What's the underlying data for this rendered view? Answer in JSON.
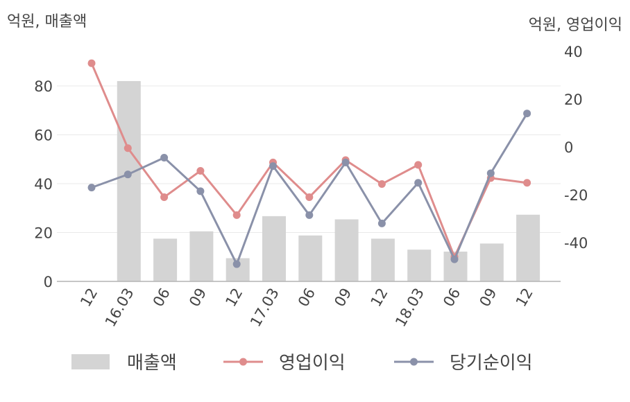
{
  "chart_data": {
    "type": "bar+line",
    "left_axis_label": "억원, 매출액",
    "right_axis_label": "억원, 영업이익",
    "categories": [
      "12",
      "16.03",
      "06",
      "09",
      "12",
      "17.03",
      "06",
      "09",
      "12",
      "18.03",
      "06",
      "09",
      "12"
    ],
    "left_ylim": [
      0,
      90
    ],
    "left_ticks": [
      0,
      20,
      40,
      60,
      80
    ],
    "right_ylim": [
      -56,
      45
    ],
    "right_ticks": [
      -40,
      -20,
      0,
      20,
      40
    ],
    "grid": true,
    "legend_position": "bottom",
    "series": [
      {
        "name": "매출액",
        "kind": "bar",
        "axis": "left",
        "color": "#d4d4d4",
        "values": [
          null,
          82,
          17.5,
          20.5,
          9.5,
          26.7,
          18.8,
          25.4,
          17.5,
          13,
          12.2,
          15.5,
          27.3
        ]
      },
      {
        "name": "영업이익",
        "kind": "line",
        "axis": "right",
        "color": "#df8c8c",
        "values": [
          35,
          -0.5,
          -21,
          -10,
          -28.5,
          -6.5,
          -21,
          -5.5,
          -15.5,
          -7.5,
          -46,
          -13,
          -15
        ]
      },
      {
        "name": "당기순이익",
        "kind": "line",
        "axis": "right",
        "color": "#8a91a9",
        "values": [
          -17,
          -11.5,
          -4.5,
          -18.5,
          -49,
          -8,
          -28.5,
          -6.5,
          -32,
          -15,
          -47,
          -11,
          14
        ]
      }
    ]
  }
}
